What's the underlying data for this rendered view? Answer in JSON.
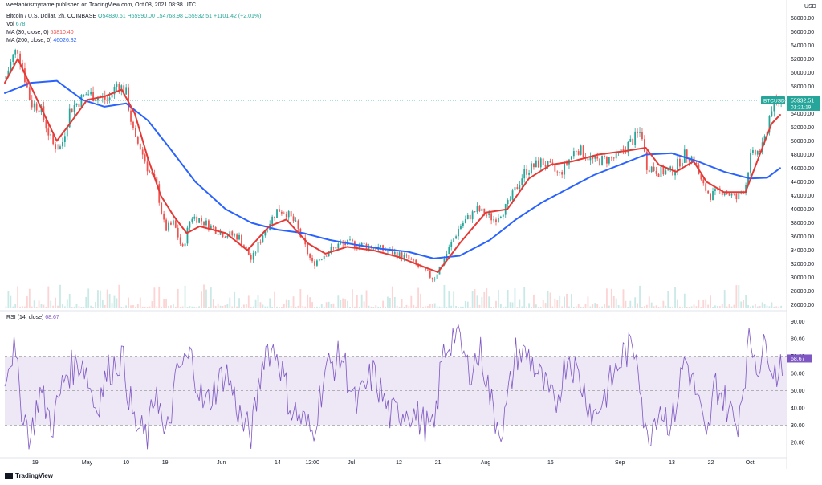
{
  "header": {
    "publisher": "weetabixismyname published on TradingView.com, Oct 08, 2021 08:38 UTC",
    "symbol_line": "Bitcoin / U.S. Dollar, 2h, COINBASE",
    "ohlc": "O54830.61  H55990.00  L54768.98  C55932.51  +1101.42 (+2.01%)",
    "vol_label": "Vol",
    "vol_value": "678",
    "ma30_label": "MA (30, close, 0)",
    "ma30_value": "53810.40",
    "ma200_label": "MA (200, close, 0)",
    "ma200_value": "46026.32",
    "rsi_label": "RSI (14, close)",
    "rsi_value": "68.67"
  },
  "footer": {
    "brand": "TradingView"
  },
  "colors": {
    "up": "#26a69a",
    "down": "#ef5350",
    "ma30": "#e53935",
    "ma200": "#2962ff",
    "rsi": "#7e57c2",
    "rsi_band": "#ede7f6",
    "last_price": "#26a69a"
  },
  "chart_data": [
    {
      "type": "candlestick",
      "title": "Bitcoin / U.S. Dollar, 2h, COINBASE",
      "currency_label": "USD",
      "last_price_label": "BTCUSD",
      "last_price": "55932.51",
      "countdown": "01:21:19",
      "yticks": [
        26000,
        28000,
        30000,
        32000,
        34000,
        36000,
        38000,
        40000,
        42000,
        44000,
        46000,
        48000,
        50000,
        52000,
        54000,
        56000,
        58000,
        60000,
        62000,
        64000,
        66000,
        68000
      ],
      "ytick_labels": [
        "26000.00",
        "28000.00",
        "30000.00",
        "32000.00",
        "34000.00",
        "36000.00",
        "38000.00",
        "40000.00",
        "42000.00",
        "44000.00",
        "46000.00",
        "48000.00",
        "50000.00",
        "52000.00",
        "54000.00",
        "56000.00",
        "58000.00",
        "60000.00",
        "62000.00",
        "64000.00",
        "66000.00",
        "68000.00"
      ],
      "ylim": [
        25500,
        68500
      ],
      "xticks": [
        "19",
        "May",
        "10",
        "19",
        "Jun",
        "14",
        "12:00",
        "Jul",
        "12",
        "21",
        "Aug",
        "16",
        "Sep",
        "13",
        "22",
        "Oct"
      ],
      "close_path": [
        [
          "Apr 12",
          59000
        ],
        [
          "Apr 14",
          62500
        ],
        [
          "Apr 15",
          63500
        ],
        [
          "Apr 16",
          61000
        ],
        [
          "Apr 18",
          55500
        ],
        [
          "Apr 20",
          55000
        ],
        [
          "Apr 23",
          49500
        ],
        [
          "Apr 25",
          49000
        ],
        [
          "Apr 27",
          54500
        ],
        [
          "May 1",
          57000
        ],
        [
          "May 3",
          56500
        ],
        [
          "May 6",
          56000
        ],
        [
          "May 8",
          58500
        ],
        [
          "May 10",
          57000
        ],
        [
          "May 12",
          50000
        ],
        [
          "May 13",
          49500
        ],
        [
          "May 15",
          46000
        ],
        [
          "May 17",
          43500
        ],
        [
          "May 19",
          37000
        ],
        [
          "May 21",
          38000
        ],
        [
          "May 23",
          34000
        ],
        [
          "May 25",
          39000
        ],
        [
          "May 27",
          38500
        ],
        [
          "Jun 1",
          36500
        ],
        [
          "Jun 5",
          36000
        ],
        [
          "Jun 8",
          32500
        ],
        [
          "Jun 11",
          37000
        ],
        [
          "Jun 14",
          40000
        ],
        [
          "Jun 16",
          39500
        ],
        [
          "Jun 18",
          38000
        ],
        [
          "Jun 22",
          32000
        ],
        [
          "Jun 25",
          33500
        ],
        [
          "Jun 28",
          34800
        ],
        [
          "Jul 1",
          35000
        ],
        [
          "Jul 6",
          34500
        ],
        [
          "Jul 10",
          33800
        ],
        [
          "Jul 14",
          32800
        ],
        [
          "Jul 20",
          29800
        ],
        [
          "Jul 22",
          32200
        ],
        [
          "Jul 26",
          37500
        ],
        [
          "Jul 30",
          40000
        ],
        [
          "Aug 3",
          38500
        ],
        [
          "Aug 6",
          40500
        ],
        [
          "Aug 10",
          45500
        ],
        [
          "Aug 14",
          47000
        ],
        [
          "Aug 18",
          45000
        ],
        [
          "Aug 22",
          49000
        ],
        [
          "Aug 26",
          47000
        ],
        [
          "Aug 31",
          47500
        ],
        [
          "Sep 3",
          49500
        ],
        [
          "Sep 6",
          51500
        ],
        [
          "Sep 7",
          46500
        ],
        [
          "Sep 10",
          45500
        ],
        [
          "Sep 13",
          45500
        ],
        [
          "Sep 16",
          48000
        ],
        [
          "Sep 18",
          47500
        ],
        [
          "Sep 20",
          43500
        ],
        [
          "Sep 22",
          42000
        ],
        [
          "Sep 25",
          42800
        ],
        [
          "Sep 28",
          41500
        ],
        [
          "Sep 30",
          43500
        ],
        [
          "Oct 1",
          47500
        ],
        [
          "Oct 4",
          49000
        ],
        [
          "Oct 6",
          55000
        ],
        [
          "Oct 8",
          55900
        ]
      ],
      "series": [
        {
          "name": "MA (30, close, 0)",
          "values": [
            [
              "Apr 12",
              58500
            ],
            [
              "Apr 15",
              62000
            ],
            [
              "Apr 18",
              58000
            ],
            [
              "Apr 21",
              54000
            ],
            [
              "Apr 24",
              50000
            ],
            [
              "Apr 27",
              52500
            ],
            [
              "May 1",
              56000
            ],
            [
              "May 5",
              56500
            ],
            [
              "May 9",
              57500
            ],
            [
              "May 12",
              54000
            ],
            [
              "May 15",
              47500
            ],
            [
              "May 18",
              42000
            ],
            [
              "May 21",
              39000
            ],
            [
              "May 24",
              36500
            ],
            [
              "May 27",
              37500
            ],
            [
              "Jun 2",
              36500
            ],
            [
              "Jun 7",
              34000
            ],
            [
              "Jun 12",
              37500
            ],
            [
              "Jun 16",
              38500
            ],
            [
              "Jun 21",
              35000
            ],
            [
              "Jun 25",
              33500
            ],
            [
              "Jun 30",
              34500
            ],
            [
              "Jul 6",
              34000
            ],
            [
              "Jul 12",
              33000
            ],
            [
              "Jul 18",
              31500
            ],
            [
              "Jul 21",
              30800
            ],
            [
              "Jul 26",
              35000
            ],
            [
              "Aug 1",
              39500
            ],
            [
              "Aug 6",
              40000
            ],
            [
              "Aug 11",
              44500
            ],
            [
              "Aug 16",
              46500
            ],
            [
              "Aug 21",
              47000
            ],
            [
              "Aug 27",
              48000
            ],
            [
              "Sep 2",
              48500
            ],
            [
              "Sep 7",
              49000
            ],
            [
              "Sep 10",
              46500
            ],
            [
              "Sep 14",
              45500
            ],
            [
              "Sep 18",
              47000
            ],
            [
              "Sep 21",
              44000
            ],
            [
              "Sep 25",
              42500
            ],
            [
              "Sep 30",
              42500
            ],
            [
              "Oct 3",
              47500
            ],
            [
              "Oct 6",
              52500
            ],
            [
              "Oct 8",
              53810
            ]
          ]
        },
        {
          "name": "MA (200, close, 0)",
          "values": [
            [
              "Apr 12",
              57000
            ],
            [
              "Apr 18",
              58500
            ],
            [
              "Apr 24",
              58800
            ],
            [
              "Apr 30",
              56000
            ],
            [
              "May 5",
              55000
            ],
            [
              "May 10",
              55500
            ],
            [
              "May 15",
              53000
            ],
            [
              "May 20",
              49000
            ],
            [
              "May 26",
              44000
            ],
            [
              "Jun 2",
              40000
            ],
            [
              "Jun 8",
              38000
            ],
            [
              "Jun 14",
              37000
            ],
            [
              "Jun 20",
              36500
            ],
            [
              "Jun 26",
              35500
            ],
            [
              "Jul 2",
              34800
            ],
            [
              "Jul 8",
              34200
            ],
            [
              "Jul 14",
              33800
            ],
            [
              "Jul 20",
              32800
            ],
            [
              "Jul 26",
              33200
            ],
            [
              "Aug 2",
              35500
            ],
            [
              "Aug 8",
              38500
            ],
            [
              "Aug 14",
              41000
            ],
            [
              "Aug 20",
              43000
            ],
            [
              "Aug 26",
              45000
            ],
            [
              "Sep 1",
              46500
            ],
            [
              "Sep 7",
              48000
            ],
            [
              "Sep 13",
              48200
            ],
            [
              "Sep 19",
              47000
            ],
            [
              "Sep 25",
              45500
            ],
            [
              "Oct 1",
              44500
            ],
            [
              "Oct 5",
              44600
            ],
            [
              "Oct 8",
              46026
            ]
          ]
        }
      ],
      "volume_label": "Vol",
      "volume_value": "678"
    },
    {
      "type": "line",
      "title": "RSI (14, close)",
      "last_value": "68.67",
      "yticks": [
        20,
        30,
        40,
        50,
        60,
        70,
        80,
        90
      ],
      "ytick_labels": [
        "20.00",
        "30.00",
        "40.00",
        "50.00",
        "60.00",
        "70.00",
        "80.00",
        "90.00"
      ],
      "ylim": [
        12,
        95
      ],
      "bands": {
        "upper": 70,
        "middle": 50,
        "lower": 30
      },
      "series": [
        {
          "name": "RSI (14, close)",
          "values": [
            [
              "Apr 12",
              60
            ],
            [
              "Apr 14",
              75
            ],
            [
              "Apr 16",
              40
            ],
            [
              "Apr 18",
              22
            ],
            [
              "Apr 20",
              50
            ],
            [
              "Apr 23",
              30
            ],
            [
              "Apr 26",
              60
            ],
            [
              "Apr 30",
              68
            ],
            [
              "May 3",
              40
            ],
            [
              "May 6",
              62
            ],
            [
              "May 9",
              70
            ],
            [
              "May 12",
              30
            ],
            [
              "May 15",
              22
            ],
            [
              "May 17",
              55
            ],
            [
              "May 19",
              18
            ],
            [
              "May 22",
              62
            ],
            [
              "May 25",
              70
            ],
            [
              "May 28",
              40
            ],
            [
              "Jun 2",
              62
            ],
            [
              "Jun 6",
              30
            ],
            [
              "Jun 8",
              25
            ],
            [
              "Jun 11",
              75
            ],
            [
              "Jun 14",
              72
            ],
            [
              "Jun 17",
              40
            ],
            [
              "Jun 20",
              32
            ],
            [
              "Jun 22",
              25
            ],
            [
              "Jun 25",
              62
            ],
            [
              "Jun 29",
              70
            ],
            [
              "Jul 2",
              40
            ],
            [
              "Jul 6",
              60
            ],
            [
              "Jul 10",
              35
            ],
            [
              "Jul 14",
              40
            ],
            [
              "Jul 18",
              30
            ],
            [
              "Jul 20",
              25
            ],
            [
              "Jul 22",
              70
            ],
            [
              "Jul 25",
              85
            ],
            [
              "Jul 28",
              62
            ],
            [
              "Jul 31",
              72
            ],
            [
              "Aug 3",
              35
            ],
            [
              "Aug 5",
              28
            ],
            [
              "Aug 8",
              72
            ],
            [
              "Aug 11",
              70
            ],
            [
              "Aug 14",
              55
            ],
            [
              "Aug 17",
              40
            ],
            [
              "Aug 20",
              72
            ],
            [
              "Aug 23",
              55
            ],
            [
              "Aug 26",
              35
            ],
            [
              "Aug 29",
              50
            ],
            [
              "Sep 2",
              72
            ],
            [
              "Sep 5",
              75
            ],
            [
              "Sep 7",
              20
            ],
            [
              "Sep 10",
              42
            ],
            [
              "Sep 13",
              30
            ],
            [
              "Sep 16",
              70
            ],
            [
              "Sep 19",
              45
            ],
            [
              "Sep 21",
              18
            ],
            [
              "Sep 23",
              55
            ],
            [
              "Sep 26",
              40
            ],
            [
              "Sep 28",
              30
            ],
            [
              "Oct 1",
              80
            ],
            [
              "Oct 3",
              65
            ],
            [
              "Oct 5",
              78
            ],
            [
              "Oct 7",
              58
            ],
            [
              "Oct 8",
              68.67
            ]
          ]
        }
      ]
    }
  ]
}
